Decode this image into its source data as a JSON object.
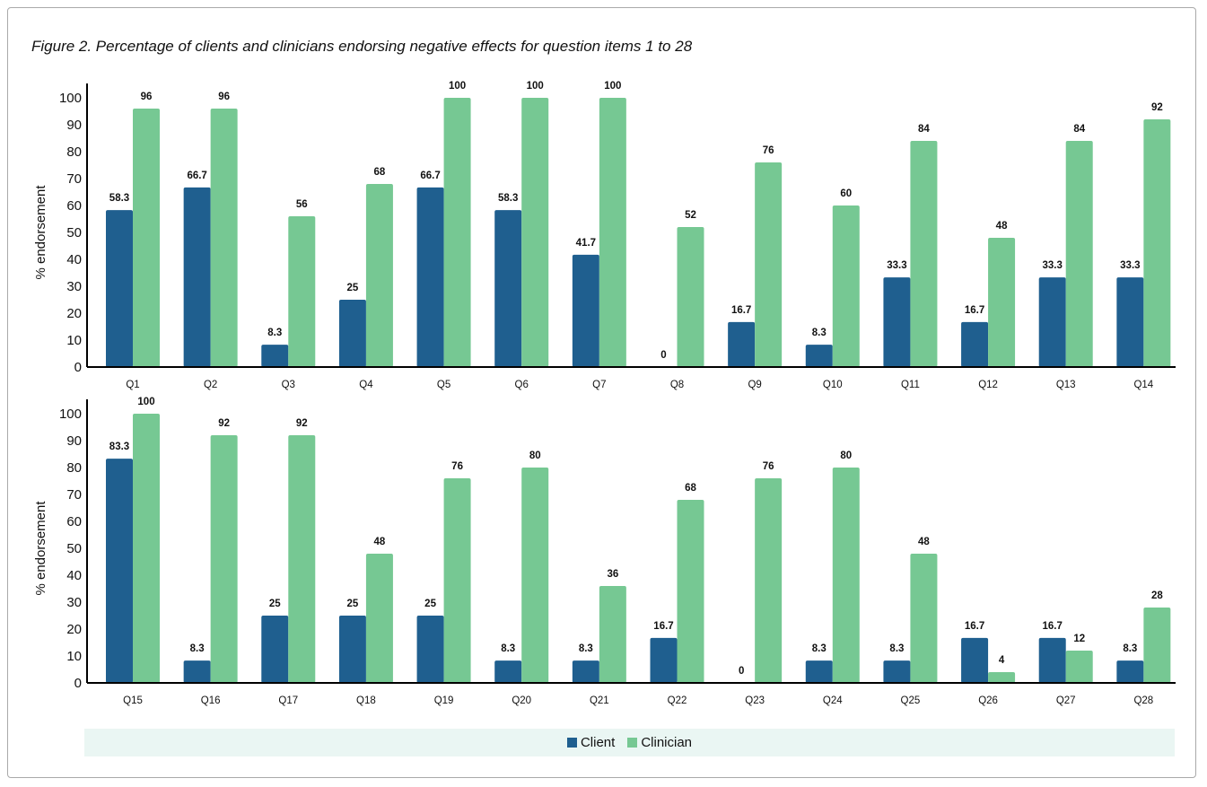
{
  "figure_title": "Figure 2. Percentage of clients and clinicians endorsing negative effects for question items 1 to 28",
  "colors": {
    "client": "#1f5f8f",
    "clinician": "#76c893",
    "legend_bg": "#eaf6f3",
    "axis": "#000000"
  },
  "legend": [
    {
      "label": "Client",
      "color_key": "client"
    },
    {
      "label": "Clinician",
      "color_key": "clinician"
    }
  ],
  "chart_data": [
    {
      "type": "bar",
      "ylabel": "% endorsement",
      "ylim": [
        0,
        100
      ],
      "yticks": [
        0,
        10,
        20,
        30,
        40,
        50,
        60,
        70,
        80,
        90,
        100
      ],
      "categories": [
        "Q1",
        "Q2",
        "Q3",
        "Q4",
        "Q5",
        "Q6",
        "Q7",
        "Q8",
        "Q9",
        "Q10",
        "Q11",
        "Q12",
        "Q13",
        "Q14"
      ],
      "series": [
        {
          "name": "Client",
          "values": [
            58.3,
            66.7,
            8.3,
            25,
            66.7,
            58.3,
            41.7,
            0,
            16.7,
            8.3,
            33.3,
            16.7,
            33.3,
            33.3
          ]
        },
        {
          "name": "Clinician",
          "values": [
            96,
            96,
            56,
            68,
            100,
            100,
            100,
            52,
            76,
            60,
            84,
            48,
            84,
            92
          ]
        }
      ]
    },
    {
      "type": "bar",
      "ylabel": "% endorsement",
      "ylim": [
        0,
        100
      ],
      "yticks": [
        0,
        10,
        20,
        30,
        40,
        50,
        60,
        70,
        80,
        90,
        100
      ],
      "categories": [
        "Q15",
        "Q16",
        "Q17",
        "Q18",
        "Q19",
        "Q20",
        "Q21",
        "Q22",
        "Q23",
        "Q24",
        "Q25",
        "Q26",
        "Q27",
        "Q28"
      ],
      "series": [
        {
          "name": "Client",
          "values": [
            83.3,
            8.3,
            25,
            25,
            25,
            8.3,
            8.3,
            16.7,
            0,
            8.3,
            8.3,
            16.7,
            16.7,
            8.3
          ]
        },
        {
          "name": "Clinician",
          "values": [
            100,
            92,
            92,
            48,
            76,
            80,
            36,
            68,
            76,
            80,
            48,
            4,
            12,
            28
          ]
        }
      ]
    }
  ]
}
